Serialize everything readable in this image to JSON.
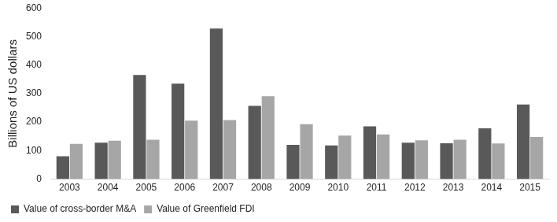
{
  "chart_data": {
    "type": "bar",
    "y_label": "Billions of US dollars",
    "categories": [
      "2003",
      "2004",
      "2005",
      "2006",
      "2007",
      "2008",
      "2009",
      "2010",
      "2011",
      "2012",
      "2013",
      "2014",
      "2015"
    ],
    "series": [
      {
        "name": "Value of cross-border M&A",
        "color": "#595959",
        "values": [
          80,
          128,
          365,
          335,
          528,
          257,
          120,
          118,
          185,
          128,
          126,
          178,
          262
        ]
      },
      {
        "name": "Value of Greenfield FDI",
        "color": "#a6a6a6",
        "values": [
          124,
          135,
          138,
          205,
          207,
          291,
          193,
          153,
          157,
          136,
          138,
          125,
          148
        ]
      }
    ],
    "ylim": [
      0,
      600
    ],
    "yticks": [
      0,
      100,
      200,
      300,
      400,
      500,
      600
    ],
    "grid": false,
    "legend": "bottom"
  }
}
